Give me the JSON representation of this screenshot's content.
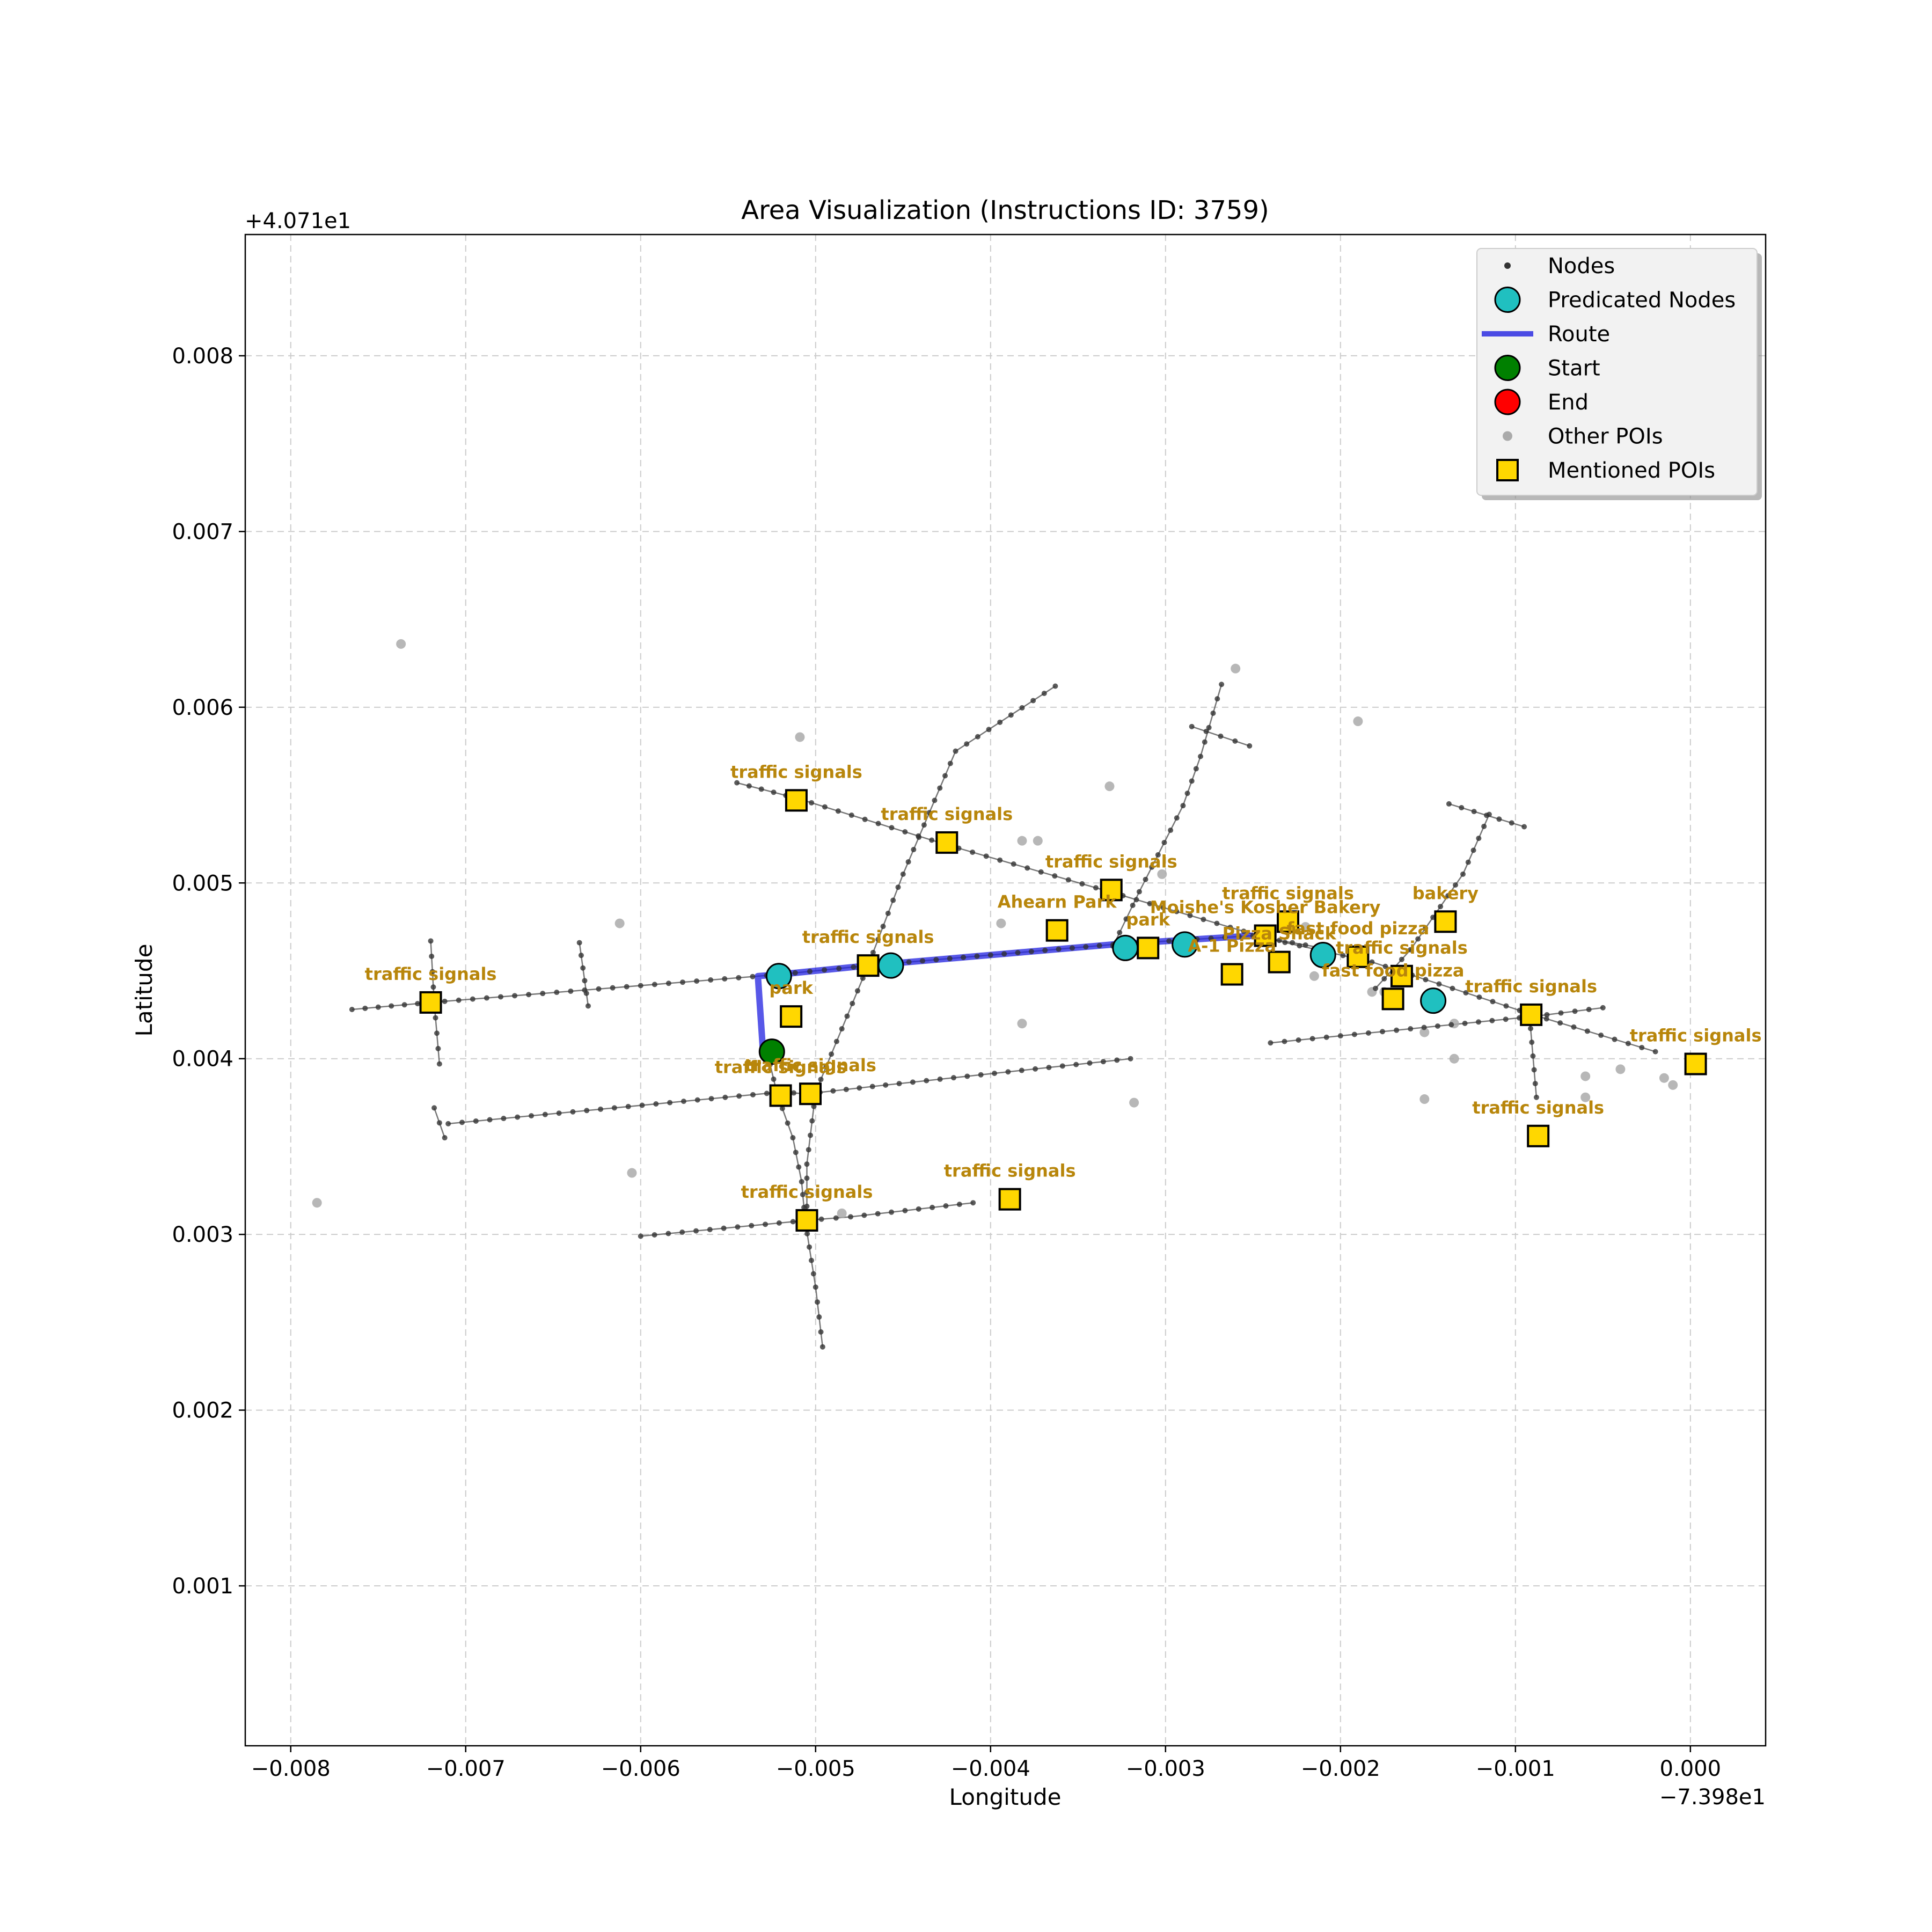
{
  "chart_data": {
    "type": "scatter",
    "title": "Area Visualization (Instructions ID: 3759)",
    "xlabel": "Longitude",
    "ylabel": "Latitude",
    "x_offset_label": "−7.398e1",
    "y_offset_label": "+4.071e1",
    "xlim": [
      -0.00826,
      0.00043
    ],
    "ylim": [
      9e-05,
      0.00869
    ],
    "x_ticks": [
      -0.008,
      -0.007,
      -0.006,
      -0.005,
      -0.004,
      -0.003,
      -0.002,
      -0.001,
      0.0
    ],
    "x_tick_labels": [
      "−0.008",
      "−0.007",
      "−0.006",
      "−0.005",
      "−0.004",
      "−0.003",
      "−0.002",
      "−0.001",
      "0.000"
    ],
    "y_ticks": [
      0.001,
      0.002,
      0.003,
      0.004,
      0.005,
      0.006,
      0.007,
      0.008
    ],
    "y_tick_labels": [
      "0.001",
      "0.002",
      "0.003",
      "0.004",
      "0.005",
      "0.006",
      "0.007",
      "0.008"
    ],
    "grid": true,
    "legend_position": "top-right",
    "legend": [
      {
        "label": "Nodes",
        "symbol": "node"
      },
      {
        "label": "Predicated Nodes",
        "symbol": "predicated"
      },
      {
        "label": "Route",
        "symbol": "route"
      },
      {
        "label": "Start",
        "symbol": "start"
      },
      {
        "label": "End",
        "symbol": "end"
      },
      {
        "label": "Other POIs",
        "symbol": "other"
      },
      {
        "label": "Mentioned POIs",
        "symbol": "mentioned"
      }
    ],
    "colors": {
      "node": "#333333",
      "edge": "#555555",
      "predicated": "#20c0c0",
      "route": "#2020e0",
      "start": "#008000",
      "end": "#ff0000",
      "other_poi": "#aaaaaa",
      "mentioned_poi": "#ffd700",
      "poi_label": "#b8860b",
      "grid": "#cccccc"
    },
    "streets": [
      [
        [
          -0.00545,
          0.00557
        ],
        [
          -0.0051,
          0.00548
        ],
        [
          -0.00426,
          0.00522
        ],
        [
          -0.00332,
          0.00495
        ],
        [
          -0.0024,
          0.00468
        ],
        [
          -0.00182,
          0.00455
        ],
        [
          -0.0009,
          0.00425
        ],
        [
          -0.0002,
          0.00404
        ]
      ],
      [
        [
          -0.00765,
          0.00428
        ],
        [
          -0.0072,
          0.00432
        ],
        [
          -0.0052,
          0.00448
        ],
        [
          -0.0047,
          0.00453
        ],
        [
          -0.0033,
          0.00465
        ],
        [
          -0.0025,
          0.0047
        ],
        [
          -0.00205,
          0.00462
        ]
      ],
      [
        [
          -0.0071,
          0.00363
        ],
        [
          -0.0052,
          0.00381
        ],
        [
          -0.00505,
          0.0038
        ],
        [
          -0.0046,
          0.00385
        ],
        [
          -0.0032,
          0.004
        ]
      ],
      [
        [
          -0.006,
          0.00299
        ],
        [
          -0.00505,
          0.00308
        ],
        [
          -0.0048,
          0.0031
        ],
        [
          -0.0041,
          0.00318
        ]
      ],
      [
        [
          -0.0024,
          0.00409
        ],
        [
          -0.0016,
          0.00417
        ],
        [
          -0.0009,
          0.00424
        ],
        [
          -0.0005,
          0.00429
        ]
      ],
      [
        [
          -0.00496,
          0.00236
        ],
        [
          -0.005,
          0.0027
        ],
        [
          -0.00506,
          0.00308
        ],
        [
          -0.00508,
          0.0033
        ],
        [
          -0.00513,
          0.00355
        ],
        [
          -0.00522,
          0.0038
        ],
        [
          -0.00528,
          0.00405
        ]
      ],
      [
        [
          -0.00505,
          0.00308
        ],
        [
          -0.00505,
          0.0034
        ],
        [
          -0.005,
          0.00381
        ],
        [
          -0.0047,
          0.00453
        ],
        [
          -0.0045,
          0.00505
        ],
        [
          -0.0042,
          0.00575
        ],
        [
          -0.00363,
          0.00612
        ]
      ],
      [
        [
          -0.0033,
          0.00464
        ],
        [
          -0.00315,
          0.00495
        ],
        [
          -0.0029,
          0.00544
        ],
        [
          -0.0028,
          0.00572
        ],
        [
          -0.00268,
          0.00613
        ]
      ],
      [
        [
          -0.00285,
          0.00589
        ],
        [
          -0.00252,
          0.00578
        ]
      ],
      [
        [
          -0.0018,
          0.0044
        ],
        [
          -0.0016,
          0.00462
        ],
        [
          -0.0013,
          0.00505
        ],
        [
          -0.00115,
          0.00539
        ]
      ],
      [
        [
          -0.00138,
          0.00545
        ],
        [
          -0.00095,
          0.00532
        ]
      ],
      [
        [
          -0.0072,
          0.00467
        ],
        [
          -0.00718,
          0.00432
        ],
        [
          -0.00715,
          0.00397
        ]
      ],
      [
        [
          -0.00635,
          0.00466
        ],
        [
          -0.0063,
          0.0043
        ]
      ],
      [
        [
          -0.00718,
          0.00372
        ],
        [
          -0.00712,
          0.00355
        ]
      ],
      [
        [
          -0.00092,
          0.00425
        ],
        [
          -0.00088,
          0.00378
        ]
      ]
    ],
    "route": [
      [
        -0.0053,
        0.00403
      ],
      [
        -0.00533,
        0.00447
      ],
      [
        -0.0052,
        0.00448
      ],
      [
        -0.0047,
        0.00453
      ],
      [
        -0.0033,
        0.00465
      ],
      [
        -0.0025,
        0.0047
      ]
    ],
    "predicated_nodes": [
      [
        -0.00521,
        0.00447
      ],
      [
        -0.00457,
        0.00453
      ],
      [
        -0.00323,
        0.00463
      ],
      [
        -0.00289,
        0.00465
      ],
      [
        -0.0021,
        0.00459
      ],
      [
        -0.00147,
        0.00433
      ]
    ],
    "start": [
      -0.00525,
      0.00404
    ],
    "end": null,
    "other_pois": [
      [
        -0.00737,
        0.00636
      ],
      [
        -0.0026,
        0.00622
      ],
      [
        -0.00509,
        0.00583
      ],
      [
        -0.0019,
        0.00592
      ],
      [
        -0.00332,
        0.00555
      ],
      [
        -0.00382,
        0.00524
      ],
      [
        -0.00373,
        0.00524
      ],
      [
        -0.00302,
        0.00505
      ],
      [
        -0.00612,
        0.00477
      ],
      [
        -0.00394,
        0.00477
      ],
      [
        -0.0022,
        0.00475
      ],
      [
        -0.00215,
        0.00447
      ],
      [
        -0.00182,
        0.00438
      ],
      [
        -0.00175,
        0.00438
      ],
      [
        -0.0015,
        0.00432
      ],
      [
        -0.00152,
        0.00415
      ],
      [
        -0.00135,
        0.0042
      ],
      [
        -0.00382,
        0.0042
      ],
      [
        -0.00135,
        0.004
      ],
      [
        -0.0006,
        0.0039
      ],
      [
        -0.0004,
        0.00394
      ],
      [
        -0.00015,
        0.00389
      ],
      [
        -0.0001,
        0.00385
      ],
      [
        -0.0006,
        0.00378
      ],
      [
        -0.00152,
        0.00377
      ],
      [
        -0.00318,
        0.00375
      ],
      [
        -0.00605,
        0.00335
      ],
      [
        -0.00485,
        0.00312
      ],
      [
        -0.00785,
        0.00318
      ]
    ],
    "mentioned_pois": [
      {
        "x": -0.0072,
        "y": 0.00432,
        "label": "traffic signals"
      },
      {
        "x": -0.00511,
        "y": 0.00547,
        "label": "traffic signals"
      },
      {
        "x": -0.00425,
        "y": 0.00523,
        "label": "traffic signals"
      },
      {
        "x": -0.00331,
        "y": 0.00496,
        "label": "traffic signals"
      },
      {
        "x": -0.0047,
        "y": 0.00453,
        "label": "traffic signals"
      },
      {
        "x": -0.00362,
        "y": 0.00473,
        "label": "Ahearn Park"
      },
      {
        "x": -0.00514,
        "y": 0.00424,
        "label": "park"
      },
      {
        "x": -0.0052,
        "y": 0.00379,
        "label": "traffic signals"
      },
      {
        "x": -0.00503,
        "y": 0.0038,
        "label": "traffic signals"
      },
      {
        "x": -0.00505,
        "y": 0.00308,
        "label": "traffic signals"
      },
      {
        "x": -0.00389,
        "y": 0.0032,
        "label": "traffic signals"
      },
      {
        "x": -0.0031,
        "y": 0.00463,
        "label": "park"
      },
      {
        "x": -0.00243,
        "y": 0.0047,
        "label": "Moishe's Kosher Bakery"
      },
      {
        "x": -0.0023,
        "y": 0.00478,
        "label": "traffic signals"
      },
      {
        "x": -0.00262,
        "y": 0.00448,
        "label": "A-1 Pizza"
      },
      {
        "x": -0.00235,
        "y": 0.00455,
        "label": "Pizza Shack"
      },
      {
        "x": -0.0019,
        "y": 0.00458,
        "label": "fast food pizza"
      },
      {
        "x": -0.00165,
        "y": 0.00447,
        "label": "traffic signals"
      },
      {
        "x": -0.0017,
        "y": 0.00434,
        "label": "fast food pizza"
      },
      {
        "x": -0.0014,
        "y": 0.00478,
        "label": "bakery"
      },
      {
        "x": -0.00091,
        "y": 0.00425,
        "label": "traffic signals"
      },
      {
        "x": 3e-05,
        "y": 0.00397,
        "label": "traffic signals"
      },
      {
        "x": -0.00087,
        "y": 0.00356,
        "label": "traffic signals"
      }
    ]
  }
}
